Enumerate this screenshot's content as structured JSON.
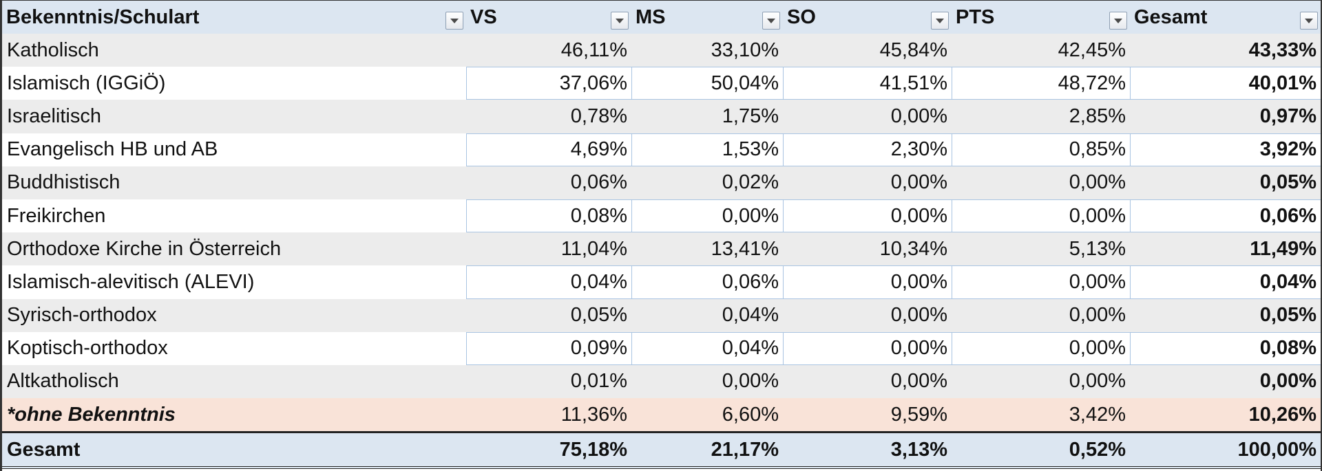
{
  "table": {
    "headers": [
      "Bekenntnis/Schulart",
      "VS",
      "MS",
      "SO",
      "PTS",
      "Gesamt"
    ],
    "rows": [
      {
        "label": "Katholisch",
        "values": [
          "46,11%",
          "33,10%",
          "45,84%",
          "42,45%",
          "43,33%"
        ]
      },
      {
        "label": "Islamisch (IGGiÖ)",
        "values": [
          "37,06%",
          "50,04%",
          "41,51%",
          "48,72%",
          "40,01%"
        ]
      },
      {
        "label": "Israelitisch",
        "values": [
          "0,78%",
          "1,75%",
          "0,00%",
          "2,85%",
          "0,97%"
        ]
      },
      {
        "label": "Evangelisch HB und AB",
        "values": [
          "4,69%",
          "1,53%",
          "2,30%",
          "0,85%",
          "3,92%"
        ]
      },
      {
        "label": "Buddhistisch",
        "values": [
          "0,06%",
          "0,02%",
          "0,00%",
          "0,00%",
          "0,05%"
        ]
      },
      {
        "label": "Freikirchen",
        "values": [
          "0,08%",
          "0,00%",
          "0,00%",
          "0,00%",
          "0,06%"
        ]
      },
      {
        "label": "Orthodoxe Kirche in Österreich",
        "values": [
          "11,04%",
          "13,41%",
          "10,34%",
          "5,13%",
          "11,49%"
        ]
      },
      {
        "label": "Islamisch-alevitisch (ALEVI)",
        "values": [
          "0,04%",
          "0,06%",
          "0,00%",
          "0,00%",
          "0,04%"
        ]
      },
      {
        "label": "Syrisch-orthodox",
        "values": [
          "0,05%",
          "0,04%",
          "0,00%",
          "0,00%",
          "0,05%"
        ]
      },
      {
        "label": "Koptisch-orthodox",
        "values": [
          "0,09%",
          "0,04%",
          "0,00%",
          "0,00%",
          "0,08%"
        ]
      },
      {
        "label": "Altkatholisch",
        "values": [
          "0,01%",
          "0,00%",
          "0,00%",
          "0,00%",
          "0,00%"
        ]
      },
      {
        "label": "*ohne Bekenntnis",
        "values": [
          "11,36%",
          "6,60%",
          "9,59%",
          "3,42%",
          "10,26%"
        ]
      }
    ],
    "total": {
      "label": "Gesamt",
      "values": [
        "75,18%",
        "21,17%",
        "3,13%",
        "0,52%",
        "100,00%"
      ]
    }
  },
  "colors": {
    "header_bg": "#dce6f1",
    "odd_row_bg": "#ececec",
    "highlight_row_bg": "#f9e3d8"
  },
  "icons": {
    "filter": "filter-dropdown-icon"
  }
}
